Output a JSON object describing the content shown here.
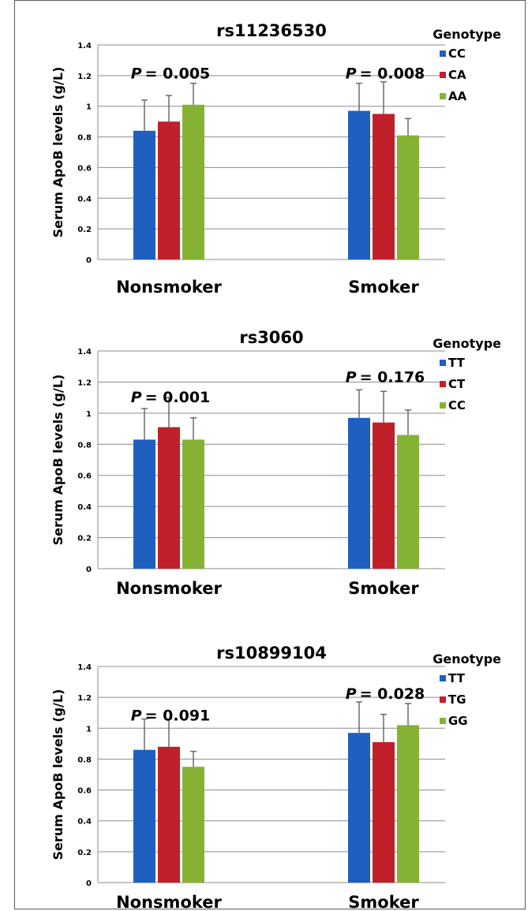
{
  "colors": {
    "series1": "#1f5fbf",
    "series2": "#c0202a",
    "series3": "#86b234",
    "grid": "#8c8c8c",
    "errorbar": "#6a6a6a"
  },
  "chart_data": [
    {
      "type": "bar",
      "title": "rs11236530",
      "ylabel": "Serum ApoB levels (g/L)",
      "legend_title": "Genotype",
      "legend_position": "top-right",
      "categories": [
        "Nonsmoker",
        "Smoker"
      ],
      "ylim": [
        0,
        1.4
      ],
      "yticks": [
        "0",
        "0.2",
        "0.4",
        "0.6",
        "0.8",
        "1",
        "1.2",
        "1.4"
      ],
      "grid": true,
      "series": [
        {
          "name": "CC",
          "values": [
            0.84,
            0.97
          ],
          "errors": [
            0.2,
            0.18
          ]
        },
        {
          "name": "CA",
          "values": [
            0.9,
            0.95
          ],
          "errors": [
            0.17,
            0.21
          ]
        },
        {
          "name": "AA",
          "values": [
            1.01,
            0.81
          ],
          "errors": [
            0.14,
            0.11
          ]
        }
      ],
      "p_italic": "P",
      "p_values": [
        "= 0.005",
        "= 0.008"
      ]
    },
    {
      "type": "bar",
      "title": "rs3060",
      "ylabel": "Serum ApoB levels (g/L)",
      "legend_title": "Genotype",
      "legend_position": "top-right",
      "categories": [
        "Nonsmoker",
        "Smoker"
      ],
      "ylim": [
        0,
        1.4
      ],
      "yticks": [
        "0",
        "0.2",
        "0.4",
        "0.6",
        "0.8",
        "1",
        "1.2",
        "1.4"
      ],
      "grid": true,
      "series": [
        {
          "name": "TT",
          "values": [
            0.83,
            0.97
          ],
          "errors": [
            0.2,
            0.18
          ]
        },
        {
          "name": "CT",
          "values": [
            0.91,
            0.94
          ],
          "errors": [
            0.19,
            0.2
          ]
        },
        {
          "name": "CC",
          "values": [
            0.83,
            0.86
          ],
          "errors": [
            0.14,
            0.16
          ]
        }
      ],
      "p_italic": "P",
      "p_values": [
        "= 0.001",
        "= 0.176"
      ]
    },
    {
      "type": "bar",
      "title": "rs10899104",
      "ylabel": "Serum ApoB levels (g/L)",
      "legend_title": "Genotype",
      "legend_position": "top-right",
      "categories": [
        "Nonsmoker",
        "Smoker"
      ],
      "ylim": [
        0,
        1.4
      ],
      "yticks": [
        "0",
        "0.2",
        "0.4",
        "0.6",
        "0.8",
        "1",
        "1.2",
        "1.4"
      ],
      "grid": true,
      "series": [
        {
          "name": "TT",
          "values": [
            0.86,
            0.97
          ],
          "errors": [
            0.2,
            0.2
          ]
        },
        {
          "name": "TG",
          "values": [
            0.88,
            0.91
          ],
          "errors": [
            0.18,
            0.18
          ]
        },
        {
          "name": "GG",
          "values": [
            0.75,
            1.02
          ],
          "errors": [
            0.1,
            0.14
          ]
        }
      ],
      "p_italic": "P",
      "p_values": [
        "= 0.091",
        "= 0.028"
      ]
    }
  ]
}
